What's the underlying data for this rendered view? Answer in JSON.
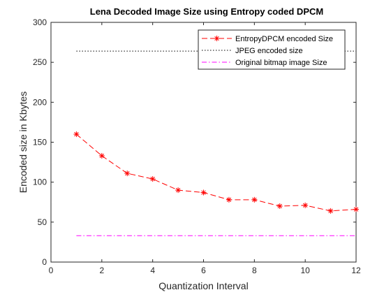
{
  "chart_data": {
    "type": "line",
    "title": "Lena Decoded Image Size using Entropy coded DPCM",
    "xlabel": "Quantization Interval",
    "ylabel": "Encoded size in Kbytes",
    "xlim": [
      0,
      12
    ],
    "ylim": [
      0,
      300
    ],
    "xticks": [
      0,
      2,
      4,
      6,
      8,
      10,
      12
    ],
    "yticks": [
      0,
      50,
      100,
      150,
      200,
      250,
      300
    ],
    "grid": false,
    "legend_position": "top-right",
    "series": [
      {
        "name": "EntropyDPCM encoded Size",
        "color": "#ff0000",
        "line_style": "dashed",
        "marker": "asterisk",
        "x": [
          1,
          2,
          3,
          4,
          5,
          6,
          7,
          8,
          9,
          10,
          11,
          12
        ],
        "y": [
          160,
          133,
          111,
          104,
          90,
          87,
          78,
          78,
          70,
          71,
          64,
          66
        ]
      },
      {
        "name": "JPEG encoded size",
        "color": "#000000",
        "line_style": "dotted",
        "marker": "none",
        "x": [
          1,
          12
        ],
        "y": [
          264,
          264
        ]
      },
      {
        "name": "Original bitmap image Size",
        "color": "#ff00ff",
        "line_style": "dashdot",
        "marker": "none",
        "x": [
          1,
          12
        ],
        "y": [
          33,
          33
        ]
      }
    ]
  }
}
